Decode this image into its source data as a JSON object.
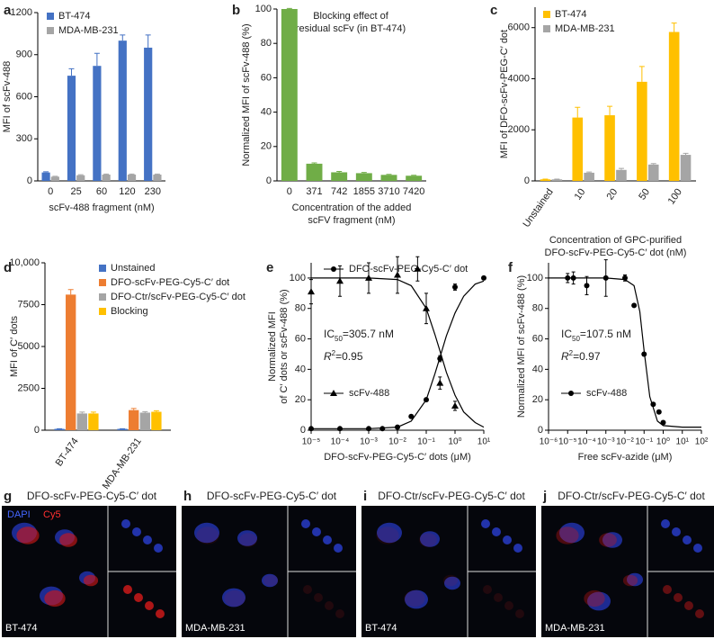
{
  "chart_data": [
    {
      "type": "bar",
      "label": "a",
      "ylabel": [
        "MFI of scFv-488"
      ],
      "xlabel": [
        "scFv-488 fragment (nM)"
      ],
      "categories": [
        "0",
        "25",
        "60",
        "120",
        "230"
      ],
      "series": [
        {
          "name": "BT-474",
          "color": "#4472c4",
          "values": [
            60,
            750,
            820,
            1000,
            950
          ],
          "errors": [
            5,
            50,
            90,
            40,
            90
          ]
        },
        {
          "name": "MDA-MB-231",
          "color": "#a5a5a5",
          "values": [
            30,
            40,
            45,
            45,
            45
          ],
          "errors": [
            3,
            4,
            4,
            4,
            4
          ]
        }
      ],
      "ylim": [
        0,
        1200
      ],
      "yticks": [
        0,
        300,
        600,
        900,
        1200
      ],
      "legend": "upper left"
    },
    {
      "type": "bar",
      "label": "b",
      "title": [
        "Blocking effect of",
        "residual scFv (in BT-474)"
      ],
      "ylabel": [
        "Normalized MFI of scFv-488 (%)"
      ],
      "xlabel": [
        "Concentration of the added",
        "scFV fragment (nM)"
      ],
      "categories": [
        "0",
        "371",
        "742",
        "1855",
        "3710",
        "7420"
      ],
      "series": [
        {
          "color": "#70ad47",
          "values": [
            100,
            10,
            5,
            4.5,
            3.5,
            3
          ],
          "errors": [
            0.3,
            0.5,
            0.5,
            0.4,
            0.3,
            0.3
          ]
        }
      ],
      "ylim": [
        0,
        100
      ],
      "yticks": [
        0,
        20,
        40,
        60,
        80,
        100
      ]
    },
    {
      "type": "bar",
      "label": "c",
      "ylabel": [
        "MFI of DFO-scFv-PEG-C′ dot"
      ],
      "xlabel": [
        "Concentration of GPC-purified",
        "DFO-scFv-PEG-Cy5-C′ dot (nM)"
      ],
      "categories": [
        "Unstained",
        "10",
        "20",
        "50",
        "100"
      ],
      "series": [
        {
          "name": "BT-474",
          "color": "#ffc000",
          "values": [
            60,
            2480,
            2570,
            3880,
            5830
          ],
          "errors": [
            10,
            400,
            350,
            600,
            350
          ]
        },
        {
          "name": "MDA-MB-231",
          "color": "#a5a5a5",
          "values": [
            60,
            320,
            430,
            640,
            1020
          ],
          "errors": [
            10,
            30,
            60,
            40,
            60
          ]
        }
      ],
      "ylim": [
        0,
        6800
      ],
      "yticks": [
        0,
        2000,
        4000,
        6000
      ],
      "legend": "upper left"
    },
    {
      "type": "bar",
      "label": "d",
      "ylabel": [
        "MFI of C′ dots"
      ],
      "categories": [
        "BT-474",
        "MDA-MB-231"
      ],
      "series": [
        {
          "name": "Unstained",
          "color": "#4472c4",
          "values": [
            80,
            80
          ],
          "errors": [
            10,
            10
          ]
        },
        {
          "name": "DFO-scFv-PEG-Cy5-C′ dot",
          "color": "#ed7d31",
          "values": [
            8100,
            1200
          ],
          "errors": [
            300,
            100
          ]
        },
        {
          "name": "DFO-Ctr/scFv-PEG-Cy5-C′ dot",
          "color": "#a5a5a5",
          "values": [
            1000,
            1050
          ],
          "errors": [
            80,
            60
          ]
        },
        {
          "name": "Blocking",
          "color": "#ffc000",
          "values": [
            1000,
            1100
          ],
          "errors": [
            80,
            60
          ]
        }
      ],
      "ylim": [
        0,
        10000
      ],
      "yticks": [
        0,
        2500,
        5000,
        7500,
        {
          "value": 10000,
          "label": "10,000"
        }
      ],
      "legend": "upper right"
    },
    {
      "type": "scatter",
      "label": "e",
      "ylabel": [
        "Normalized MFI",
        "of C′ dots or scFv-488 (%)"
      ],
      "xlabel": [
        "DFO-scFv-PEG-Cy5-C′ dots (μM)"
      ],
      "xscale": "log",
      "xlim": [
        1e-05,
        10
      ],
      "xticks": [
        {
          "value": 1e-05,
          "label": "10⁻⁵"
        },
        {
          "value": 0.0001,
          "label": "10⁻⁴"
        },
        {
          "value": 0.001,
          "label": "10⁻³"
        },
        {
          "value": 0.01,
          "label": "10⁻²"
        },
        {
          "value": 0.1,
          "label": "10⁻¹"
        },
        {
          "value": 1,
          "label": "10⁰"
        },
        {
          "value": 10,
          "label": "10¹"
        }
      ],
      "ylim": [
        0,
        110
      ],
      "yticks": [
        0,
        20,
        40,
        60,
        80,
        100
      ],
      "series": [
        {
          "name": "DFO-scFv-PEG-Cy5-C′ dot",
          "color": "#000000",
          "marker": "circle",
          "x": [
            1e-05,
            0.0001,
            0.001,
            0.003,
            0.01,
            0.03,
            0.1,
            0.3,
            1,
            10
          ],
          "values": [
            1,
            1,
            1,
            1,
            2,
            9,
            20,
            47,
            94,
            100
          ],
          "errors": [
            0.5,
            0.5,
            0.5,
            0.5,
            0.5,
            1,
            1,
            2,
            2,
            1
          ],
          "fit_x": [
            1e-05,
            0.001,
            0.01,
            0.03,
            0.1,
            0.2,
            0.3,
            0.5,
            1,
            2,
            5,
            10
          ],
          "fit_y": [
            1,
            1,
            2,
            6,
            20,
            37,
            48,
            62,
            77,
            88,
            96,
            98
          ]
        },
        {
          "name": "scFv-488",
          "color": "#000000",
          "marker": "triangle",
          "x": [
            1e-05,
            0.0001,
            0.001,
            0.01,
            0.05,
            0.1,
            0.3,
            1
          ],
          "values": [
            91,
            98,
            100,
            102,
            106,
            80,
            31,
            16
          ],
          "errors": [
            8,
            10,
            10,
            12,
            8,
            10,
            4,
            3
          ],
          "fit_x": [
            1e-05,
            0.001,
            0.01,
            0.03,
            0.1,
            0.2,
            0.3,
            0.5,
            1,
            2,
            5,
            10
          ],
          "fit_y": [
            100,
            100,
            99,
            95,
            80,
            63,
            52,
            38,
            23,
            12,
            5,
            2
          ]
        }
      ],
      "annotations": [
        {
          "base": "IC",
          "sub": "50",
          "rest": "=305.7 nM"
        },
        {
          "base": "R",
          "sup": "2",
          "rest": "=0.95"
        }
      ]
    },
    {
      "type": "scatter",
      "label": "f",
      "ylabel": [
        "Normalized MFI of scFv-488 (%)"
      ],
      "xlabel": [
        "Free scFv-azide (μM)"
      ],
      "xscale": "log",
      "xlim": [
        1e-06,
        100
      ],
      "xticks": [
        {
          "value": 1e-06,
          "label": "10⁻⁶"
        },
        {
          "value": 1e-05,
          "label": "10⁻⁵"
        },
        {
          "value": 0.0001,
          "label": "10⁻⁴"
        },
        {
          "value": 0.001,
          "label": "10⁻³"
        },
        {
          "value": 0.01,
          "label": "10⁻²"
        },
        {
          "value": 0.1,
          "label": "10⁻¹"
        },
        {
          "value": 1,
          "label": "10⁰"
        },
        {
          "value": 10,
          "label": "10¹"
        },
        {
          "value": 100,
          "label": "10²"
        }
      ],
      "ylim": [
        0,
        110
      ],
      "yticks": [
        0,
        20,
        40,
        60,
        80,
        100
      ],
      "series": [
        {
          "name": "scFv-488",
          "color": "#000000",
          "marker": "circle",
          "x": [
            1e-05,
            2e-05,
            0.0001,
            0.001,
            0.01,
            0.03,
            0.1,
            0.3,
            0.6,
            1
          ],
          "values": [
            100,
            100,
            95,
            100,
            100,
            82,
            50,
            17,
            12,
            5
          ],
          "errors": [
            3,
            4,
            6,
            12,
            2,
            1,
            1,
            1,
            1,
            1
          ],
          "fit_x": [
            1e-06,
            0.0001,
            0.001,
            0.01,
            0.03,
            0.06,
            0.1,
            0.2,
            0.5,
            1,
            10,
            100
          ],
          "fit_y": [
            100,
            100,
            100,
            99,
            95,
            78,
            52,
            22,
            6,
            3,
            2,
            2
          ]
        }
      ],
      "annotations": [
        {
          "base": "IC",
          "sub": "50",
          "rest": "=107.5 nM"
        },
        {
          "base": "R",
          "sup": "2",
          "rest": "=0.97"
        }
      ]
    }
  ],
  "image_panels": [
    {
      "label": "g",
      "title": "DFO-scFv-PEG-Cy5-C′ dot",
      "cell_line": "BT-474",
      "channels": [
        "DAPI",
        "Cy5"
      ]
    },
    {
      "label": "h",
      "title": "DFO-scFv-PEG-Cy5-C′ dot",
      "cell_line": "MDA-MB-231"
    },
    {
      "label": "i",
      "title": "DFO-Ctr/scFv-PEG-Cy5-C′ dot",
      "cell_line": "BT-474"
    },
    {
      "label": "j",
      "title": "DFO-Ctr/scFv-PEG-Cy5-C′ dot",
      "cell_line": "MDA-MB-231"
    }
  ]
}
